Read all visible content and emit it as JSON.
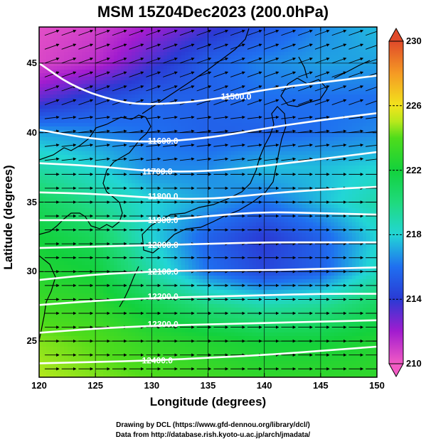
{
  "title": "MSM 15Z04Dec2023 (200.0hPa)",
  "xlabel": "Longitude (degrees)",
  "ylabel": "Latitude  (degrees)",
  "credits": [
    "Drawing by DCL (https://www.gfd-dennou.org/library/dcl/)",
    "Data from http://database.rish.kyoto-u.ac.jp/arch/jmadata/"
  ],
  "chart_data": {
    "type": "heatmap",
    "title": "MSM 15Z04Dec2023 (200.0hPa)",
    "xlabel": "Longitude (degrees)",
    "ylabel": "Latitude  (degrees)",
    "xlim": [
      120,
      150
    ],
    "ylim": [
      22.4,
      47.6
    ],
    "xticks": [
      "120",
      "125",
      "130",
      "135",
      "140",
      "145",
      "150"
    ],
    "yticks": [
      "25",
      "30",
      "35",
      "40",
      "45"
    ],
    "grid": true,
    "colorbar": {
      "range": [
        210,
        230
      ],
      "ticks": [
        "210",
        "214",
        "218",
        "222",
        "226",
        "230"
      ],
      "stops": [
        {
          "value": 210,
          "color": "#f25bc4"
        },
        {
          "value": 212,
          "color": "#a21ccf"
        },
        {
          "value": 214,
          "color": "#2a3ad4"
        },
        {
          "value": 216,
          "color": "#1f6ff0"
        },
        {
          "value": 218,
          "color": "#22d6d6"
        },
        {
          "value": 220,
          "color": "#1fda7d"
        },
        {
          "value": 222,
          "color": "#13d13c"
        },
        {
          "value": 224,
          "color": "#4fdc1b"
        },
        {
          "value": 225,
          "color": "#b6e81c"
        },
        {
          "value": 226,
          "color": "#f2e41c"
        },
        {
          "value": 228,
          "color": "#f59a24"
        },
        {
          "value": 230,
          "color": "#e04a2a"
        }
      ]
    },
    "contours": [
      {
        "label": "11500.0",
        "label_lon": 137.5,
        "label_lat": 42.6,
        "points": [
          [
            120,
            45.0
          ],
          [
            123,
            43.3
          ],
          [
            127,
            42.2
          ],
          [
            130,
            42.0
          ],
          [
            135,
            42.3
          ],
          [
            140,
            43.1
          ],
          [
            145,
            43.6
          ],
          [
            150,
            44.1
          ]
        ]
      },
      {
        "label": "11600.0",
        "label_lon": 131.0,
        "label_lat": 39.4,
        "points": [
          [
            120,
            40.2
          ],
          [
            125,
            39.5
          ],
          [
            130,
            39.3
          ],
          [
            135,
            39.6
          ],
          [
            140,
            40.3
          ],
          [
            145,
            40.9
          ],
          [
            150,
            41.4
          ]
        ]
      },
      {
        "label": "11700.0",
        "label_lon": 130.5,
        "label_lat": 37.2,
        "points": [
          [
            120,
            37.8
          ],
          [
            125,
            37.6
          ],
          [
            130,
            37.2
          ],
          [
            135,
            37.2
          ],
          [
            140,
            37.6
          ],
          [
            145,
            38.1
          ],
          [
            150,
            38.6
          ]
        ]
      },
      {
        "label": "11800.0",
        "label_lon": 131.0,
        "label_lat": 35.4,
        "points": [
          [
            120,
            35.7
          ],
          [
            125,
            35.6
          ],
          [
            130,
            35.3
          ],
          [
            135,
            35.2
          ],
          [
            140,
            35.6
          ],
          [
            145,
            35.9
          ],
          [
            150,
            36.1
          ]
        ]
      },
      {
        "label": "11900.0",
        "label_lon": 131.0,
        "label_lat": 33.7,
        "points": [
          [
            120,
            33.7
          ],
          [
            125,
            33.7
          ],
          [
            130,
            33.6
          ],
          [
            135,
            34.0
          ],
          [
            140,
            34.3
          ],
          [
            145,
            34.2
          ],
          [
            150,
            34.1
          ]
        ]
      },
      {
        "label": "12000.0",
        "label_lon": 131.0,
        "label_lat": 31.9,
        "points": [
          [
            120,
            31.7
          ],
          [
            125,
            31.8
          ],
          [
            130,
            31.9
          ],
          [
            135,
            32.0
          ],
          [
            140,
            32.1
          ],
          [
            145,
            32.1
          ],
          [
            150,
            32.1
          ]
        ]
      },
      {
        "label": "12100.0",
        "label_lon": 131.0,
        "label_lat": 30.0,
        "points": [
          [
            120,
            29.4
          ],
          [
            125,
            29.8
          ],
          [
            130,
            30.0
          ],
          [
            135,
            30.1
          ],
          [
            140,
            30.1
          ],
          [
            145,
            30.2
          ],
          [
            150,
            30.3
          ]
        ]
      },
      {
        "label": "12200.0",
        "label_lon": 131.0,
        "label_lat": 28.2,
        "points": [
          [
            120,
            27.6
          ],
          [
            125,
            27.9
          ],
          [
            130,
            28.1
          ],
          [
            135,
            28.2
          ],
          [
            140,
            28.3
          ],
          [
            145,
            28.4
          ],
          [
            150,
            28.4
          ]
        ]
      },
      {
        "label": "12300.0",
        "label_lon": 131.0,
        "label_lat": 26.2,
        "points": [
          [
            120,
            25.6
          ],
          [
            125,
            25.9
          ],
          [
            130,
            26.1
          ],
          [
            135,
            26.2
          ],
          [
            140,
            26.3
          ],
          [
            145,
            26.4
          ],
          [
            150,
            26.5
          ]
        ]
      },
      {
        "label": "12400.0",
        "label_lon": 130.5,
        "label_lat": 23.6,
        "points": [
          [
            120,
            23.4
          ],
          [
            125,
            23.5
          ],
          [
            130,
            23.6
          ],
          [
            135,
            23.8
          ],
          [
            140,
            24.0
          ],
          [
            145,
            24.3
          ],
          [
            150,
            24.6
          ]
        ]
      }
    ],
    "temperature_field": [
      {
        "lat": 47.6,
        "values": [
          210.4,
          210.8,
          212.0,
          213.5,
          215.0,
          216.5,
          217.5
        ]
      },
      {
        "lat": 45.0,
        "values": [
          210.6,
          211.4,
          213.5,
          215.5,
          216.5,
          217.0,
          217.0
        ]
      },
      {
        "lat": 42.5,
        "values": [
          213.0,
          214.5,
          215.5,
          215.5,
          216.0,
          216.0,
          216.0
        ]
      },
      {
        "lat": 40.0,
        "values": [
          217.0,
          216.5,
          216.0,
          215.5,
          215.5,
          216.0,
          216.5
        ]
      },
      {
        "lat": 37.5,
        "values": [
          219.0,
          218.0,
          216.5,
          216.5,
          217.5,
          217.5,
          218.0
        ]
      },
      {
        "lat": 35.0,
        "values": [
          221.0,
          219.5,
          218.0,
          217.0,
          216.0,
          217.5,
          219.0
        ]
      },
      {
        "lat": 32.5,
        "values": [
          222.0,
          221.0,
          218.0,
          215.5,
          214.0,
          215.5,
          218.0
        ]
      },
      {
        "lat": 30.0,
        "values": [
          222.5,
          222.0,
          219.0,
          216.0,
          214.5,
          215.5,
          218.5
        ]
      },
      {
        "lat": 27.5,
        "values": [
          223.5,
          223.0,
          221.5,
          220.0,
          219.0,
          219.5,
          221.0
        ]
      },
      {
        "lat": 25.0,
        "values": [
          224.5,
          224.0,
          223.0,
          222.5,
          222.0,
          222.0,
          222.5
        ]
      },
      {
        "lat": 22.4,
        "values": [
          225.0,
          224.5,
          224.0,
          223.5,
          223.0,
          223.0,
          223.0
        ]
      }
    ],
    "field_lons": [
      120,
      125,
      130,
      135,
      140,
      145,
      150
    ],
    "wind_direction": "westerly (eastward arrows)"
  }
}
